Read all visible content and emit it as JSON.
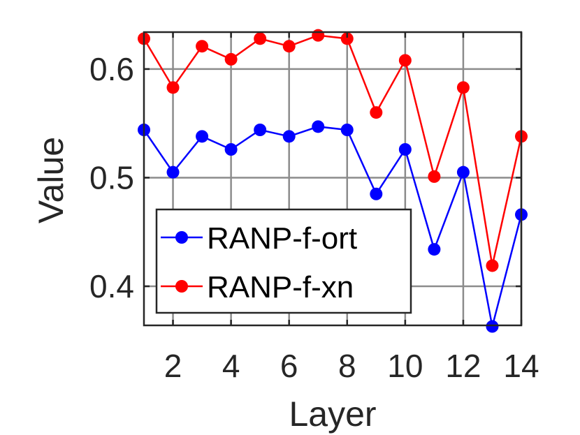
{
  "chart_data": {
    "type": "line",
    "title": "",
    "xlabel": "Layer",
    "ylabel": "Value",
    "xlim": [
      1,
      14
    ],
    "ylim": [
      0.364,
      0.634
    ],
    "xticks": [
      2,
      4,
      6,
      8,
      10,
      12,
      14
    ],
    "yticks": [
      0.4,
      0.5,
      0.6
    ],
    "xtick_labels": [
      "2",
      "4",
      "6",
      "8",
      "10",
      "12",
      "14"
    ],
    "ytick_labels": [
      "0.4",
      "0.5",
      "0.6"
    ],
    "grid": true,
    "legend_position": "lower-left",
    "x": [
      1,
      2,
      3,
      4,
      5,
      6,
      7,
      8,
      9,
      10,
      11,
      12,
      13,
      14
    ],
    "series": [
      {
        "name": "RANP-f-ort",
        "color": "#0000ff",
        "values": [
          0.544,
          0.505,
          0.538,
          0.526,
          0.544,
          0.538,
          0.547,
          0.544,
          0.485,
          0.526,
          0.434,
          0.505,
          0.363,
          0.466
        ]
      },
      {
        "name": "RANP-f-xn",
        "color": "#ff0000",
        "values": [
          0.628,
          0.583,
          0.621,
          0.609,
          0.628,
          0.621,
          0.631,
          0.628,
          0.56,
          0.608,
          0.501,
          0.583,
          0.419,
          0.538
        ]
      }
    ]
  }
}
